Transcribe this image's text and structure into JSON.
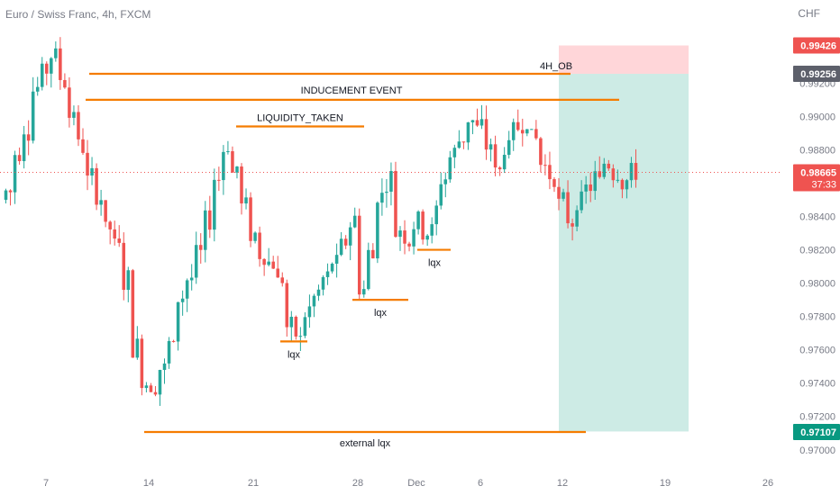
{
  "header": {
    "symbol_title": "Euro / Swiss Franc, 4h, FXCM",
    "currency": "CHF"
  },
  "colors": {
    "bull": "#26a69a",
    "bear": "#ef5350",
    "level_line": "#f57c00",
    "supply_zone": "#ffd6d9",
    "target_zone": "#cdebe5",
    "price_line": "#ef5350",
    "axis_text": "#787b86"
  },
  "chart_data": {
    "type": "candlestick",
    "x_axis_labels": [
      "7",
      "14",
      "21",
      "28",
      "Dec",
      "6",
      "12",
      "19",
      "26"
    ],
    "y_axis_ticks": [
      0.97,
      0.972,
      0.974,
      0.976,
      0.978,
      0.98,
      0.982,
      0.984,
      0.986,
      0.988,
      0.99,
      0.992
    ],
    "y_axis_tick_labels": [
      "0.97000",
      "0.97200",
      "0.97400",
      "0.97600",
      "0.97800",
      "0.98000",
      "0.98200",
      "0.98400",
      "0.98600",
      "0.98800",
      "0.99000",
      "0.99200"
    ],
    "ylim": [
      0.9688,
      0.9958
    ],
    "price_badges": [
      {
        "label": "0.99426",
        "value": 0.99426,
        "color": "#ef5350"
      },
      {
        "label": "0.99256",
        "value": 0.99256,
        "color": "#5d606b"
      },
      {
        "label": "0.98665",
        "sub_label": "37:33",
        "value": 0.98665,
        "color": "#ef5350"
      },
      {
        "label": "0.97107",
        "value": 0.97107,
        "color": "#089981"
      }
    ],
    "current_price": 0.98665,
    "annotations": [
      {
        "text": "4H_OB",
        "price": 0.99256
      },
      {
        "text": "INDUCEMENT EVENT",
        "price": 0.991
      },
      {
        "text": "LIQUIDITY_TAKEN",
        "price": 0.9894
      },
      {
        "text": "lqx",
        "price": 0.9765
      },
      {
        "text": "lqx",
        "price": 0.979
      },
      {
        "text": "lqx",
        "price": 0.982
      },
      {
        "text": "external lqx",
        "price": 0.97107
      }
    ],
    "zones": [
      {
        "name": "supply",
        "top": 0.99426,
        "bottom": 0.99256
      },
      {
        "name": "target",
        "top": 0.99256,
        "bottom": 0.9711
      }
    ],
    "ohlc_anchors": [
      [
        0.985,
        0.986
      ],
      [
        0.9875,
        0.988
      ],
      [
        0.989,
        0.9895
      ],
      [
        0.9915,
        0.992
      ],
      [
        0.9925,
        0.993
      ],
      [
        0.9935,
        0.994
      ],
      [
        0.992,
        0.9925
      ],
      [
        0.99,
        0.9905
      ],
      [
        0.988,
        0.9885
      ],
      [
        0.986,
        0.9865
      ],
      [
        0.985,
        0.9855
      ],
      [
        0.983,
        0.9835
      ],
      [
        0.982,
        0.9825
      ],
      [
        0.98,
        0.9805
      ],
      [
        0.976,
        0.9765
      ],
      [
        0.974,
        0.9745
      ],
      [
        0.9735,
        0.974
      ],
      [
        0.9748,
        0.975
      ],
      [
        0.976,
        0.9765
      ],
      [
        0.979,
        0.9795
      ],
      [
        0.98,
        0.9805
      ],
      [
        0.9815,
        0.982
      ],
      [
        0.9835,
        0.984
      ],
      [
        0.986,
        0.9865
      ],
      [
        0.988,
        0.9885
      ],
      [
        0.9865,
        0.987
      ],
      [
        0.9845,
        0.985
      ],
      [
        0.9825,
        0.983
      ],
      [
        0.9815,
        0.982
      ],
      [
        0.981,
        0.9815
      ],
      [
        0.98,
        0.9805
      ],
      [
        0.977,
        0.9775
      ],
      [
        0.9765,
        0.977
      ],
      [
        0.978,
        0.9785
      ],
      [
        0.979,
        0.9795
      ],
      [
        0.98,
        0.9805
      ],
      [
        0.981,
        0.9815
      ],
      [
        0.982,
        0.9825
      ],
      [
        0.9835,
        0.984
      ],
      [
        0.9795,
        0.98
      ],
      [
        0.9815,
        0.982
      ],
      [
        0.985,
        0.9855
      ],
      [
        0.986,
        0.9865
      ],
      [
        0.983,
        0.9835
      ],
      [
        0.9825,
        0.983
      ],
      [
        0.9835,
        0.984
      ],
      [
        0.983,
        0.9835
      ],
      [
        0.984,
        0.9845
      ],
      [
        0.986,
        0.9865
      ],
      [
        0.9875,
        0.988
      ],
      [
        0.9885,
        0.989
      ],
      [
        0.9895,
        0.99
      ],
      [
        0.989,
        0.9895
      ],
      [
        0.988,
        0.9885
      ],
      [
        0.9865,
        0.987
      ],
      [
        0.988,
        0.9885
      ],
      [
        0.989,
        0.9895
      ],
      [
        0.9895,
        0.99
      ],
      [
        0.9885,
        0.989
      ],
      [
        0.987,
        0.9875
      ],
      [
        0.986,
        0.9865
      ],
      [
        0.9845,
        0.985
      ],
      [
        0.9835,
        0.984
      ],
      [
        0.9845,
        0.985
      ],
      [
        0.9855,
        0.986
      ],
      [
        0.986,
        0.9865
      ],
      [
        0.987,
        0.9875
      ],
      [
        0.9865,
        0.987
      ],
      [
        0.986,
        0.9865
      ],
      [
        0.9865,
        0.9867
      ]
    ]
  }
}
